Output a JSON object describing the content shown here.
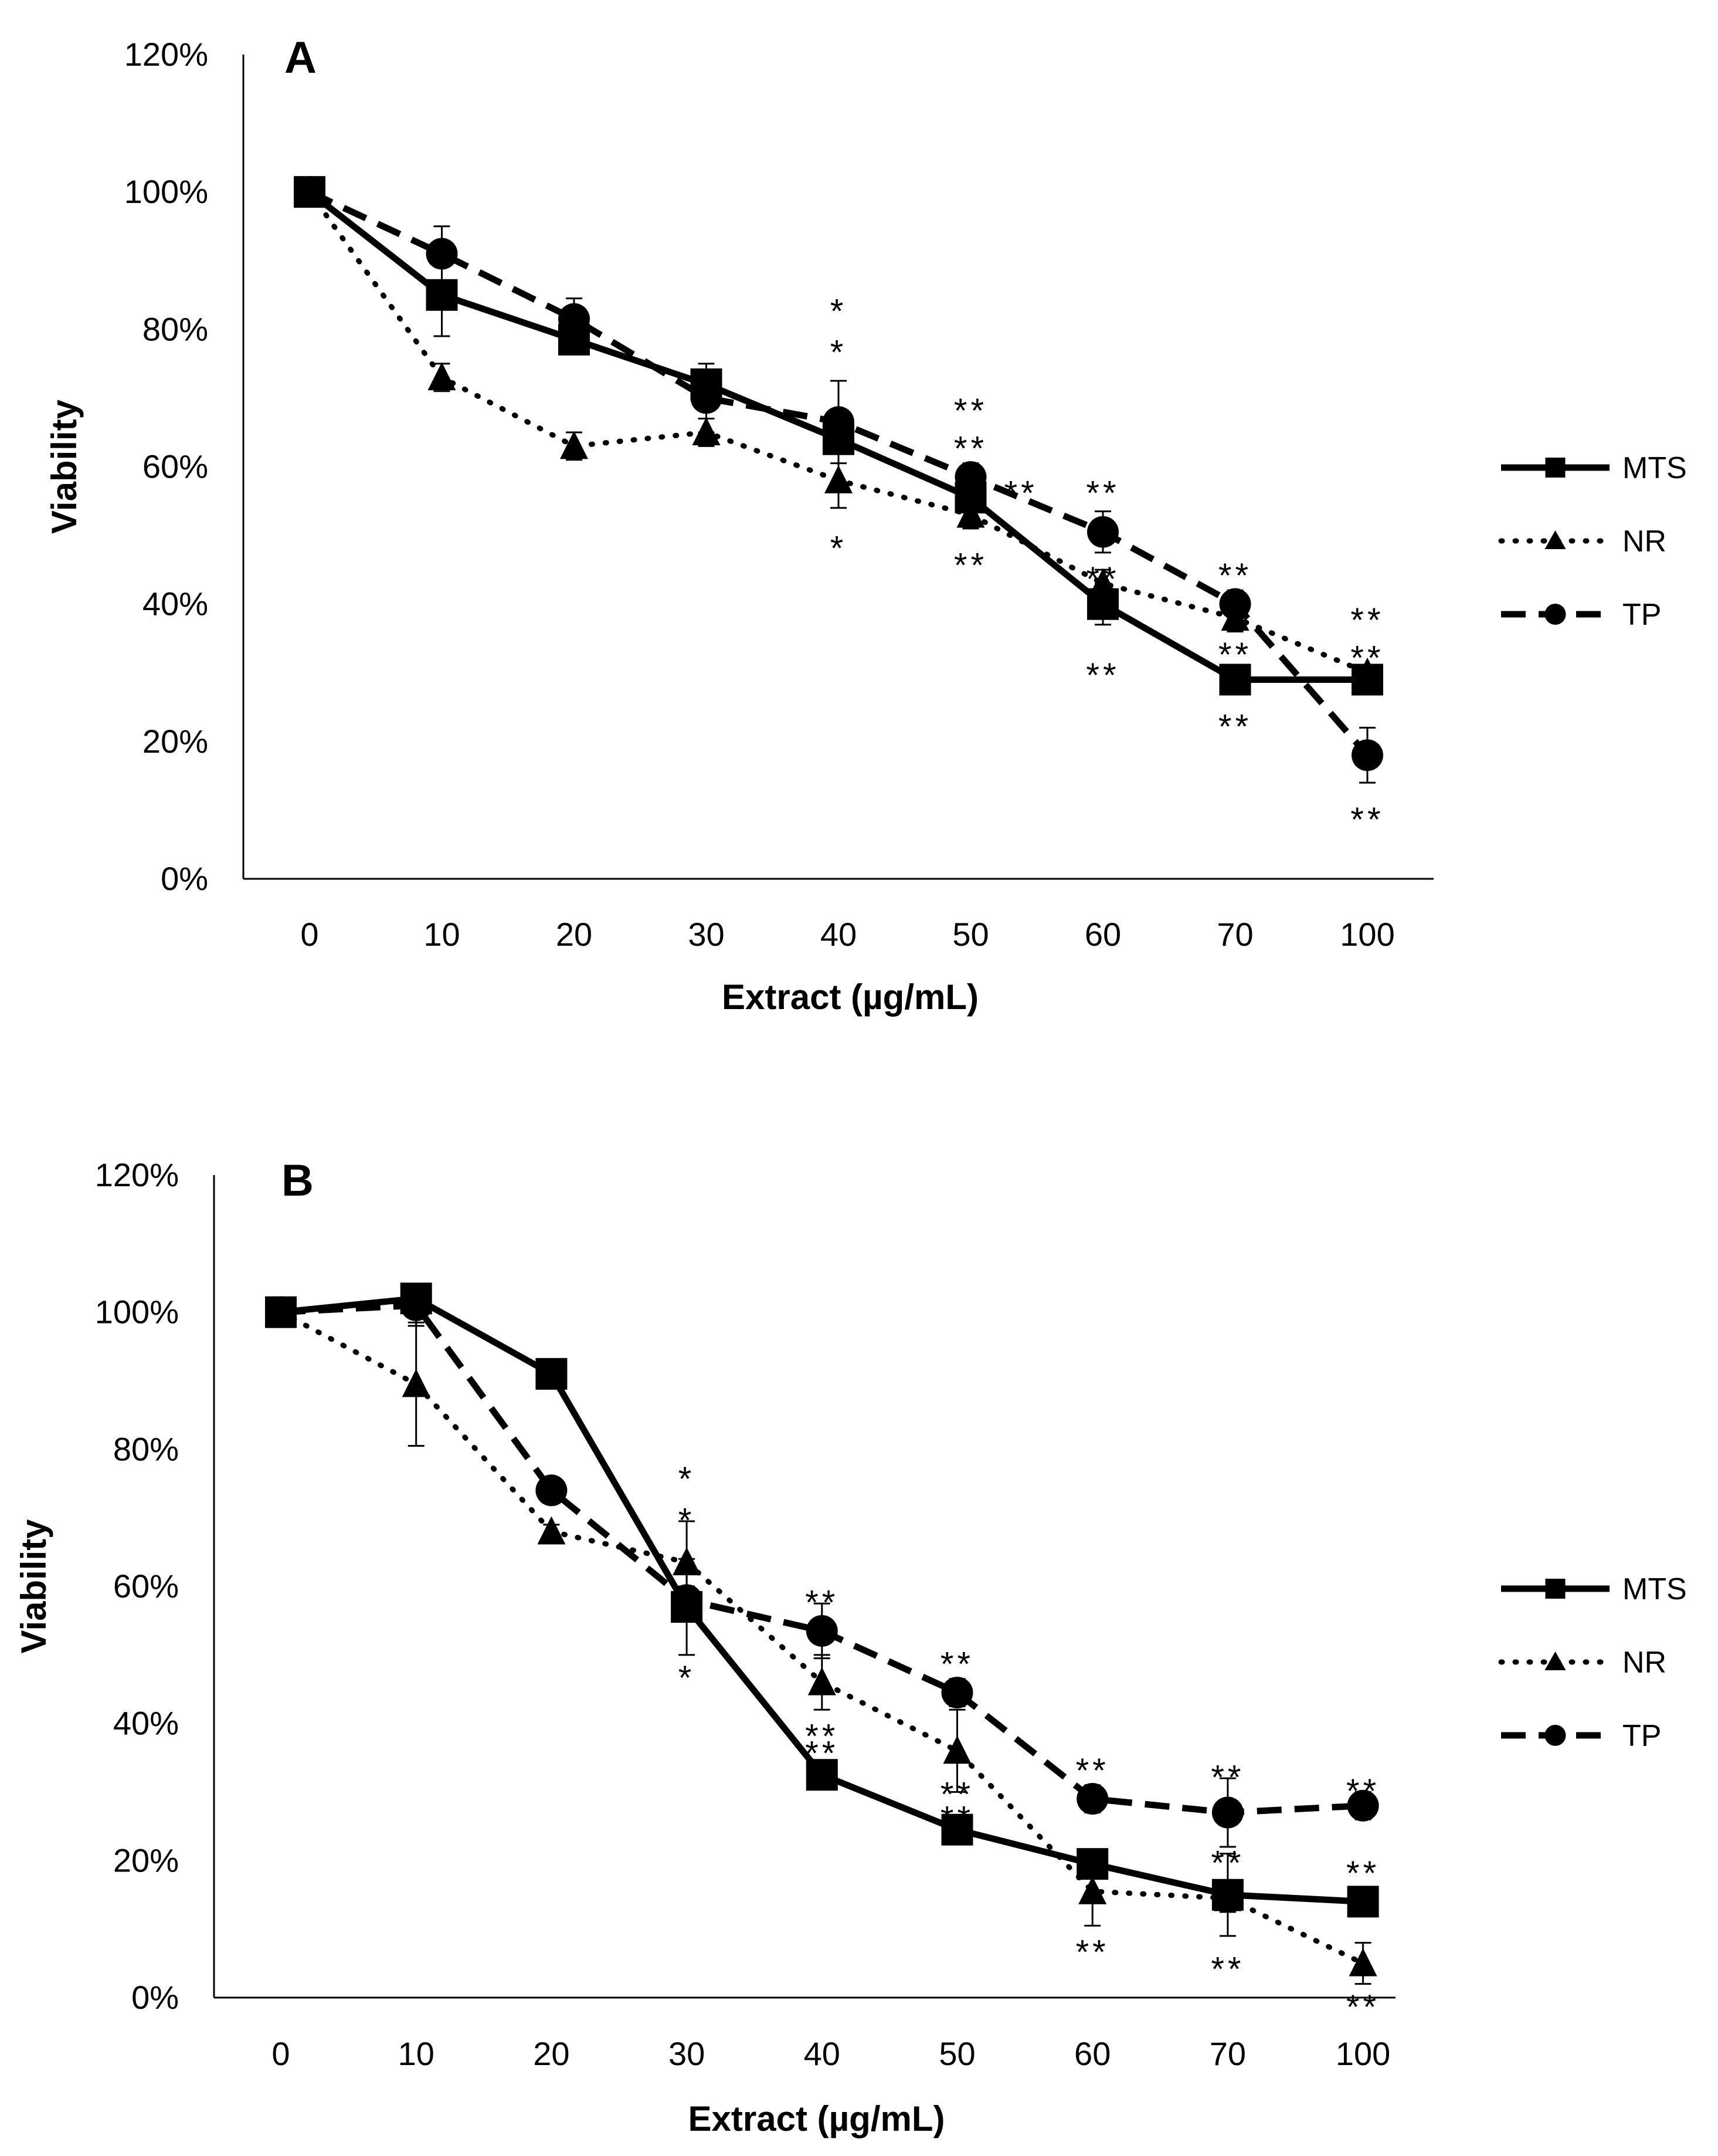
{
  "chart_data": [
    {
      "type": "line",
      "panel": "A",
      "ylabel": "Viability",
      "xlabel": "Extract (µg/mL)",
      "categories": [
        "0",
        "10",
        "20",
        "30",
        "40",
        "50",
        "60",
        "70",
        "100"
      ],
      "yticks": [
        "0%",
        "20%",
        "40%",
        "60%",
        "80%",
        "100%",
        "120%"
      ],
      "ylim": [
        0,
        1.2
      ],
      "legend": {
        "position": "right",
        "entries": [
          "MTS",
          "NR",
          "TP"
        ]
      },
      "series": [
        {
          "name": "MTS",
          "style": "solid",
          "marker": "square",
          "values": [
            1.0,
            0.85,
            0.785,
            0.72,
            0.64,
            0.555,
            0.4,
            0.29,
            0.29
          ],
          "errors": [
            0,
            0.06,
            0.01,
            0.02,
            0.02,
            0.02,
            0.03,
            0.01,
            0.01
          ]
        },
        {
          "name": "NR",
          "style": "dotted",
          "marker": "triangle",
          "values": [
            1.0,
            0.73,
            0.63,
            0.65,
            0.58,
            0.53,
            0.43,
            0.38,
            0.3
          ],
          "errors": [
            0,
            0.02,
            0.02,
            0.02,
            0.04,
            0.02,
            0.02,
            0.02,
            0.01
          ]
        },
        {
          "name": "TP",
          "style": "dashed",
          "marker": "circle",
          "values": [
            1.0,
            0.91,
            0.815,
            0.7,
            0.665,
            0.585,
            0.505,
            0.4,
            0.18
          ],
          "errors": [
            0,
            0.04,
            0.03,
            0.05,
            0.06,
            0.02,
            0.03,
            0.02,
            0.04
          ]
        }
      ],
      "annotations": [
        {
          "cat": "40",
          "y": 0.835,
          "text": "*"
        },
        {
          "cat": "40",
          "y": 0.775,
          "text": "*"
        },
        {
          "cat": "40",
          "y": 0.49,
          "text": "*"
        },
        {
          "cat": "50",
          "y": 0.69,
          "text": "**"
        },
        {
          "cat": "50",
          "y": 0.635,
          "text": "**"
        },
        {
          "cat": "50",
          "y": 0.57,
          "text": "**",
          "dx": 0.38
        },
        {
          "cat": "50",
          "y": 0.465,
          "text": "**"
        },
        {
          "cat": "60",
          "y": 0.57,
          "text": "**"
        },
        {
          "cat": "60",
          "y": 0.445,
          "text": "**"
        },
        {
          "cat": "60",
          "y": 0.305,
          "text": "**"
        },
        {
          "cat": "70",
          "y": 0.45,
          "text": "**"
        },
        {
          "cat": "70",
          "y": 0.335,
          "text": "**"
        },
        {
          "cat": "70",
          "y": 0.23,
          "text": "**"
        },
        {
          "cat": "100",
          "y": 0.385,
          "text": "**"
        },
        {
          "cat": "100",
          "y": 0.33,
          "text": "**"
        },
        {
          "cat": "100",
          "y": 0.095,
          "text": "**"
        }
      ]
    },
    {
      "type": "line",
      "panel": "B",
      "ylabel": "Viability",
      "xlabel": "Extract (µg/mL)",
      "categories": [
        "0",
        "10",
        "20",
        "30",
        "40",
        "50",
        "60",
        "70",
        "100"
      ],
      "yticks": [
        "0%",
        "20%",
        "40%",
        "60%",
        "80%",
        "100%",
        "120%"
      ],
      "ylim": [
        0,
        1.2
      ],
      "legend": {
        "position": "right",
        "entries": [
          "MTS",
          "NR",
          "TP"
        ]
      },
      "series": [
        {
          "name": "MTS",
          "style": "solid",
          "marker": "square",
          "values": [
            1.0,
            1.02,
            0.91,
            0.57,
            0.325,
            0.245,
            0.195,
            0.15,
            0.14
          ],
          "errors": [
            0,
            0.01,
            0.01,
            0.07,
            0.02,
            0.01,
            0.02,
            0.06,
            0.01
          ]
        },
        {
          "name": "NR",
          "style": "dotted",
          "marker": "triangle",
          "values": [
            1.0,
            0.895,
            0.68,
            0.635,
            0.46,
            0.36,
            0.155,
            0.145,
            0.05
          ],
          "errors": [
            0,
            0.09,
            0.01,
            0.06,
            0.04,
            0.06,
            0.05,
            0.02,
            0.03
          ]
        },
        {
          "name": "TP",
          "style": "dashed",
          "marker": "circle",
          "values": [
            1.0,
            1.01,
            0.74,
            0.58,
            0.535,
            0.445,
            0.29,
            0.27,
            0.28
          ],
          "errors": [
            0,
            0.03,
            0.01,
            0.02,
            0.04,
            0.02,
            0.02,
            0.05,
            0.02
          ]
        }
      ],
      "annotations": [
        {
          "cat": "30",
          "y": 0.765,
          "text": "*"
        },
        {
          "cat": "30",
          "y": 0.705,
          "text": "*"
        },
        {
          "cat": "30",
          "y": 0.475,
          "text": "*"
        },
        {
          "cat": "40",
          "y": 0.585,
          "text": "**"
        },
        {
          "cat": "40",
          "y": 0.39,
          "text": "**"
        },
        {
          "cat": "40",
          "y": 0.365,
          "text": "**"
        },
        {
          "cat": "50",
          "y": 0.495,
          "text": "**"
        },
        {
          "cat": "50",
          "y": 0.305,
          "text": "**"
        },
        {
          "cat": "50",
          "y": 0.27,
          "text": "**"
        },
        {
          "cat": "60",
          "y": 0.34,
          "text": "**"
        },
        {
          "cat": "60",
          "y": 0.075,
          "text": "**"
        },
        {
          "cat": "70",
          "y": 0.33,
          "text": "**"
        },
        {
          "cat": "70",
          "y": 0.205,
          "text": "**"
        },
        {
          "cat": "70",
          "y": 0.05,
          "text": "**"
        },
        {
          "cat": "100",
          "y": 0.31,
          "text": "**"
        },
        {
          "cat": "100",
          "y": 0.19,
          "text": "**"
        },
        {
          "cat": "100",
          "y": -0.005,
          "text": "**"
        }
      ]
    }
  ]
}
